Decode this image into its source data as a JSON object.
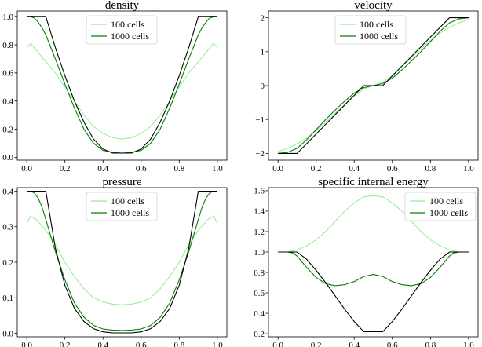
{
  "colors": {
    "c100": "#90EE90",
    "c1000": "#008000",
    "exact": "#000000",
    "frame": "#000000"
  },
  "chart_data": [
    {
      "type": "line",
      "title": "density",
      "xlim": [
        -0.05,
        1.05
      ],
      "ylim": [
        -0.02,
        1.04
      ],
      "xticks": [
        0.0,
        0.2,
        0.4,
        0.6,
        0.8,
        1.0
      ],
      "xtick_labels": [
        "0.0",
        "0.2",
        "0.4",
        "0.6",
        "0.8",
        "1.0"
      ],
      "yticks": [
        0.0,
        0.2,
        0.4,
        0.6,
        0.8,
        1.0
      ],
      "ytick_labels": [
        "0.0",
        "0.2",
        "0.4",
        "0.6",
        "0.8",
        "1.0"
      ],
      "legend": "top-center",
      "legend_entries": [
        "100 cells",
        "1000 cells"
      ],
      "series": [
        {
          "label": "100 cells",
          "color": "#90EE90",
          "x": [
            0.0,
            0.02,
            0.05,
            0.1,
            0.15,
            0.2,
            0.25,
            0.3,
            0.35,
            0.4,
            0.45,
            0.5,
            0.55,
            0.6,
            0.65,
            0.7,
            0.75,
            0.8,
            0.85,
            0.9,
            0.95,
            0.98,
            1.0
          ],
          "y": [
            0.78,
            0.81,
            0.76,
            0.68,
            0.6,
            0.5,
            0.4,
            0.3,
            0.22,
            0.17,
            0.14,
            0.13,
            0.14,
            0.17,
            0.22,
            0.3,
            0.4,
            0.5,
            0.6,
            0.68,
            0.76,
            0.81,
            0.78
          ]
        },
        {
          "label": "1000 cells",
          "color": "#008000",
          "x": [
            0.0,
            0.02,
            0.04,
            0.06,
            0.08,
            0.1,
            0.15,
            0.2,
            0.25,
            0.3,
            0.35,
            0.4,
            0.45,
            0.5,
            0.55,
            0.6,
            0.65,
            0.7,
            0.75,
            0.8,
            0.85,
            0.9,
            0.92,
            0.94,
            0.96,
            0.98,
            1.0
          ],
          "y": [
            1.0,
            1.0,
            0.99,
            0.96,
            0.92,
            0.87,
            0.7,
            0.52,
            0.35,
            0.2,
            0.1,
            0.05,
            0.035,
            0.03,
            0.035,
            0.05,
            0.1,
            0.2,
            0.35,
            0.52,
            0.7,
            0.87,
            0.92,
            0.96,
            0.99,
            1.0,
            1.0
          ]
        },
        {
          "label": "",
          "color": "#000000",
          "x": [
            0.0,
            0.1,
            0.15,
            0.2,
            0.25,
            0.3,
            0.35,
            0.4,
            0.45,
            0.55,
            0.6,
            0.65,
            0.7,
            0.75,
            0.8,
            0.85,
            0.9,
            1.0
          ],
          "y": [
            1.0,
            1.0,
            0.78,
            0.58,
            0.4,
            0.25,
            0.13,
            0.06,
            0.03,
            0.03,
            0.06,
            0.13,
            0.25,
            0.4,
            0.58,
            0.78,
            1.0,
            1.0
          ]
        }
      ]
    },
    {
      "type": "line",
      "title": "velocity",
      "xlim": [
        -0.05,
        1.05
      ],
      "ylim": [
        -2.2,
        2.2
      ],
      "xticks": [
        0.0,
        0.2,
        0.4,
        0.6,
        0.8,
        1.0
      ],
      "xtick_labels": [
        "0.0",
        "0.2",
        "0.4",
        "0.6",
        "0.8",
        "1.0"
      ],
      "yticks": [
        -2,
        -1,
        0,
        1,
        2
      ],
      "ytick_labels": [
        "−2",
        "−1",
        "0",
        "1",
        "2"
      ],
      "legend": "top-center",
      "legend_entries": [
        "100 cells",
        "1000 cells"
      ],
      "series": [
        {
          "label": "100 cells",
          "color": "#90EE90",
          "x": [
            0.0,
            0.05,
            0.1,
            0.15,
            0.2,
            0.25,
            0.3,
            0.35,
            0.4,
            0.45,
            0.5,
            0.55,
            0.6,
            0.65,
            0.7,
            0.75,
            0.8,
            0.85,
            0.9,
            0.95,
            1.0
          ],
          "y": [
            -1.95,
            -1.85,
            -1.72,
            -1.55,
            -1.33,
            -1.08,
            -0.82,
            -0.56,
            -0.3,
            -0.1,
            0.0,
            0.1,
            0.3,
            0.56,
            0.82,
            1.08,
            1.33,
            1.55,
            1.72,
            1.85,
            1.95
          ]
        },
        {
          "label": "1000 cells",
          "color": "#008000",
          "x": [
            0.0,
            0.05,
            0.1,
            0.15,
            0.2,
            0.25,
            0.3,
            0.35,
            0.4,
            0.45,
            0.5,
            0.55,
            0.6,
            0.65,
            0.7,
            0.75,
            0.8,
            0.85,
            0.9,
            0.95,
            1.0
          ],
          "y": [
            -2.0,
            -1.97,
            -1.85,
            -1.6,
            -1.3,
            -1.0,
            -0.72,
            -0.46,
            -0.22,
            -0.06,
            0.0,
            0.06,
            0.22,
            0.46,
            0.72,
            1.0,
            1.3,
            1.6,
            1.85,
            1.97,
            2.0
          ]
        },
        {
          "label": "",
          "color": "#000000",
          "x": [
            0.0,
            0.1,
            0.45,
            0.55,
            0.9,
            1.0
          ],
          "y": [
            -2.0,
            -2.0,
            0.0,
            0.0,
            2.0,
            2.0
          ]
        }
      ]
    },
    {
      "type": "line",
      "title": "pressure",
      "xlim": [
        -0.05,
        1.05
      ],
      "ylim": [
        -0.01,
        0.41
      ],
      "xticks": [
        0.0,
        0.2,
        0.4,
        0.6,
        0.8,
        1.0
      ],
      "xtick_labels": [
        "0.0",
        "0.2",
        "0.4",
        "0.6",
        "0.8",
        "1.0"
      ],
      "yticks": [
        0.0,
        0.1,
        0.2,
        0.3,
        0.4
      ],
      "ytick_labels": [
        "0.0",
        "0.1",
        "0.2",
        "0.3",
        "0.4"
      ],
      "legend": "top-center",
      "legend_entries": [
        "100 cells",
        "1000 cells"
      ],
      "series": [
        {
          "label": "100 cells",
          "color": "#90EE90",
          "x": [
            0.0,
            0.02,
            0.05,
            0.1,
            0.15,
            0.2,
            0.25,
            0.3,
            0.35,
            0.4,
            0.45,
            0.5,
            0.55,
            0.6,
            0.65,
            0.7,
            0.75,
            0.8,
            0.85,
            0.9,
            0.95,
            0.98,
            1.0
          ],
          "y": [
            0.31,
            0.33,
            0.32,
            0.29,
            0.25,
            0.2,
            0.16,
            0.125,
            0.1,
            0.088,
            0.082,
            0.08,
            0.082,
            0.088,
            0.1,
            0.125,
            0.16,
            0.2,
            0.25,
            0.29,
            0.32,
            0.33,
            0.31
          ]
        },
        {
          "label": "1000 cells",
          "color": "#008000",
          "x": [
            0.0,
            0.02,
            0.04,
            0.06,
            0.08,
            0.1,
            0.15,
            0.2,
            0.25,
            0.3,
            0.35,
            0.4,
            0.45,
            0.5,
            0.55,
            0.6,
            0.65,
            0.7,
            0.75,
            0.8,
            0.85,
            0.9,
            0.92,
            0.94,
            0.96,
            0.98,
            1.0
          ],
          "y": [
            0.4,
            0.4,
            0.395,
            0.38,
            0.355,
            0.32,
            0.23,
            0.15,
            0.085,
            0.045,
            0.022,
            0.012,
            0.009,
            0.008,
            0.009,
            0.012,
            0.022,
            0.045,
            0.085,
            0.15,
            0.23,
            0.32,
            0.355,
            0.38,
            0.395,
            0.4,
            0.4
          ]
        },
        {
          "label": "",
          "color": "#000000",
          "x": [
            0.0,
            0.1,
            0.15,
            0.2,
            0.25,
            0.3,
            0.35,
            0.4,
            0.45,
            0.55,
            0.6,
            0.65,
            0.7,
            0.75,
            0.8,
            0.85,
            0.9,
            1.0
          ],
          "y": [
            0.4,
            0.4,
            0.24,
            0.135,
            0.07,
            0.033,
            0.013,
            0.004,
            0.001,
            0.001,
            0.004,
            0.013,
            0.033,
            0.07,
            0.135,
            0.24,
            0.4,
            0.4
          ]
        }
      ]
    },
    {
      "type": "line",
      "title": "specific internal energy",
      "xlim": [
        -0.05,
        1.05
      ],
      "ylim": [
        0.17,
        1.63
      ],
      "xticks": [
        0.0,
        0.2,
        0.4,
        0.6,
        0.8,
        1.0
      ],
      "xtick_labels": [
        "0.0",
        "0.2",
        "0.4",
        "0.6",
        "0.8",
        "1.0"
      ],
      "yticks": [
        0.2,
        0.4,
        0.6,
        0.8,
        1.0,
        1.2,
        1.4,
        1.6
      ],
      "ytick_labels": [
        "0.2",
        "0.4",
        "0.6",
        "0.8",
        "1.0",
        "1.2",
        "1.4",
        "1.6"
      ],
      "legend": "top-right",
      "legend_entries": [
        "100 cells",
        "1000 cells"
      ],
      "series": [
        {
          "label": "100 cells",
          "color": "#90EE90",
          "x": [
            0.0,
            0.05,
            0.1,
            0.15,
            0.2,
            0.25,
            0.3,
            0.35,
            0.4,
            0.45,
            0.5,
            0.55,
            0.6,
            0.65,
            0.7,
            0.75,
            0.8,
            0.85,
            0.9,
            0.95,
            1.0
          ],
          "y": [
            1.0,
            1.0,
            1.02,
            1.06,
            1.12,
            1.2,
            1.3,
            1.4,
            1.48,
            1.54,
            1.55,
            1.54,
            1.48,
            1.4,
            1.3,
            1.2,
            1.12,
            1.06,
            1.02,
            1.0,
            1.0
          ]
        },
        {
          "label": "1000 cells",
          "color": "#008000",
          "x": [
            0.0,
            0.05,
            0.08,
            0.1,
            0.15,
            0.2,
            0.25,
            0.3,
            0.35,
            0.4,
            0.45,
            0.5,
            0.55,
            0.6,
            0.65,
            0.7,
            0.75,
            0.8,
            0.85,
            0.9,
            0.92,
            0.95,
            1.0
          ],
          "y": [
            1.0,
            1.0,
            0.99,
            0.96,
            0.85,
            0.75,
            0.69,
            0.67,
            0.68,
            0.71,
            0.76,
            0.78,
            0.76,
            0.71,
            0.68,
            0.67,
            0.69,
            0.75,
            0.85,
            0.96,
            0.99,
            1.0,
            1.0
          ]
        },
        {
          "label": "",
          "color": "#000000",
          "x": [
            0.0,
            0.1,
            0.15,
            0.2,
            0.25,
            0.3,
            0.35,
            0.4,
            0.45,
            0.55,
            0.6,
            0.65,
            0.7,
            0.75,
            0.8,
            0.85,
            0.9,
            1.0
          ],
          "y": [
            1.0,
            1.0,
            0.93,
            0.82,
            0.7,
            0.57,
            0.44,
            0.32,
            0.22,
            0.22,
            0.32,
            0.44,
            0.57,
            0.7,
            0.82,
            0.93,
            1.0,
            1.0
          ]
        }
      ]
    }
  ]
}
